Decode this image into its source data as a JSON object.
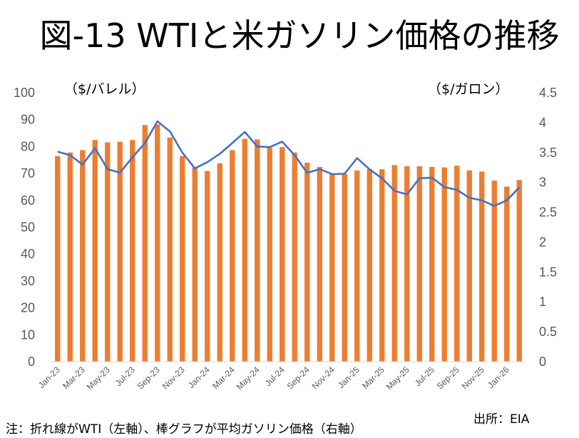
{
  "title": "図-13 WTIと米ガソリン価格の推移",
  "left_unit": "（$/バレル）",
  "right_unit": "（$/ガロン）",
  "note": "注：折れ線がWTI（左軸）、棒グラフが平均ガソリン価格（右軸）",
  "source": "出所：EIA",
  "colors": {
    "bars": "#ED7D31",
    "line": "#4472C4",
    "ticks": "#595959"
  },
  "chart_data": {
    "type": "bar",
    "categories": [
      "Jan-23",
      "Feb-23",
      "Mar-23",
      "Apr-23",
      "May-23",
      "Jun-23",
      "Jul-23",
      "Aug-23",
      "Sep-23",
      "Oct-23",
      "Nov-23",
      "Dec-23",
      "Jan-24",
      "Feb-24",
      "Mar-24",
      "Apr-24",
      "May-24",
      "Jun-24",
      "Jul-24",
      "Aug-24",
      "Sep-24",
      "Oct-24",
      "Nov-24",
      "Dec-24",
      "Jan-25",
      "Feb-25",
      "Mar-25",
      "Apr-25",
      "May-25",
      "Jun-25",
      "Jul-25",
      "Aug-25",
      "Sep-25",
      "Oct-25",
      "Nov-25",
      "Dec-25",
      "Jan-26",
      "Feb-26"
    ],
    "x_tick_labels": [
      "Jan-23",
      "Mar-23",
      "May-23",
      "Jul-23",
      "Sep-23",
      "Nov-23",
      "Jan-24",
      "Mar-24",
      "May-24",
      "Jul-24",
      "Sep-24",
      "Nov-24",
      "Jan-25",
      "Mar-25",
      "May-25",
      "Jul-25",
      "Sep-25",
      "Nov-25",
      "Jan-26"
    ],
    "series": [
      {
        "name": "平均ガソリン価格",
        "type": "bar",
        "axis": "right",
        "values": [
          3.44,
          3.5,
          3.54,
          3.71,
          3.67,
          3.68,
          3.71,
          3.96,
          3.97,
          3.75,
          3.44,
          3.25,
          3.19,
          3.32,
          3.54,
          3.73,
          3.72,
          3.58,
          3.59,
          3.5,
          3.33,
          3.26,
          3.15,
          3.14,
          3.2,
          3.22,
          3.22,
          3.29,
          3.27,
          3.27,
          3.26,
          3.25,
          3.28,
          3.2,
          3.18,
          3.03,
          2.93,
          3.04
        ]
      },
      {
        "name": "WTI",
        "type": "line",
        "axis": "left",
        "values": [
          78.1,
          76.8,
          73.3,
          79.4,
          71.6,
          70.3,
          76.0,
          81.3,
          89.4,
          85.6,
          77.7,
          71.9,
          74.2,
          77.3,
          81.3,
          85.4,
          80.0,
          79.8,
          81.8,
          76.7,
          70.2,
          71.6,
          69.7,
          69.9,
          75.7,
          71.5,
          68.2,
          63.5,
          62.2,
          68.2,
          68.4,
          64.9,
          63.9,
          60.9,
          60.0,
          57.9,
          60.0,
          64.8
        ]
      }
    ],
    "left_axis": {
      "ylim": [
        0,
        100
      ],
      "ticks": [
        "0",
        "10",
        "20",
        "30",
        "40",
        "50",
        "60",
        "70",
        "80",
        "90",
        "100"
      ]
    },
    "right_axis": {
      "ylim": [
        0,
        4.5
      ],
      "ticks": [
        "0",
        "0.5",
        "1",
        "1.5",
        "2",
        "2.5",
        "3",
        "3.5",
        "4",
        "4.5"
      ]
    },
    "grid": false,
    "legend": "none"
  }
}
